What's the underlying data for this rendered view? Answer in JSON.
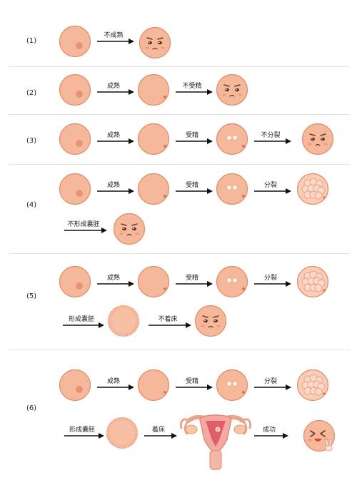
{
  "rows": [
    {
      "label": "(1)",
      "arrows": [
        "不成熟"
      ]
    },
    {
      "label": "(2)",
      "arrows": [
        "成熟",
        "不受精"
      ]
    },
    {
      "label": "(3)",
      "arrows": [
        "成熟",
        "受精",
        "不分裂"
      ]
    },
    {
      "label": "(4)",
      "arrows": [
        "成熟",
        "受精",
        "分裂",
        "不形成囊胚"
      ]
    },
    {
      "label": "(5)",
      "arrows": [
        "成熟",
        "受精",
        "分裂",
        "形成囊胚",
        "不着床"
      ]
    },
    {
      "label": "(6)",
      "arrows": [
        "成熟",
        "受精",
        "分裂",
        "形成囊胚",
        "着床",
        "成功"
      ]
    }
  ],
  "colors": {
    "cell_fill": "#f6b89a",
    "cell_stroke": "#e08a66",
    "nucleus": "#e79476",
    "mature_dot": "#e8705a",
    "arrow": "#111111",
    "divider": "#e3e3e3"
  },
  "icons": {
    "sad_face": "sad-egg-face",
    "happy_face": "happy-egg-face-peace-sign",
    "uterus": "uterus-illustration"
  }
}
